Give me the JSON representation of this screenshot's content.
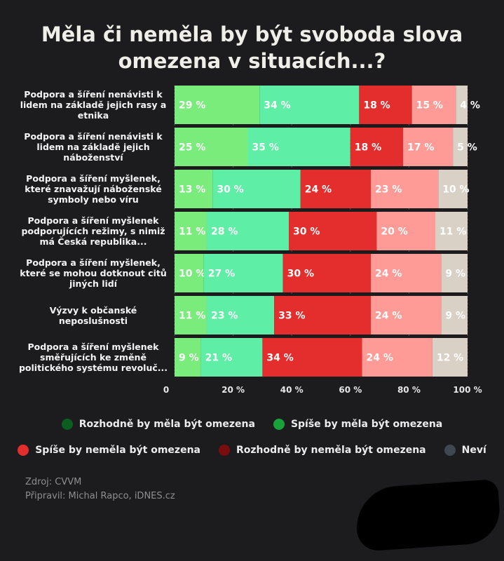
{
  "title_lines": [
    "Měla či neměla by být svoboda slova",
    "omezena v situacích...?"
  ],
  "source": "Zdroj: CVVM",
  "author": "Připravil: Michal Rapco, iDNES.cz",
  "colors": {
    "background": "#1c1c1e",
    "seg": [
      "#79ec7c",
      "#5eeea5",
      "#e42d2d",
      "#ff9b97",
      "#d9d1c6"
    ],
    "legend": [
      "#0b5e1f",
      "#19a13a",
      "#e42d2d",
      "#7a0d0d",
      "#3f4750"
    ],
    "label_text": "#ffffff",
    "grid": "#555555"
  },
  "legend": [
    "Rozhodně by měla být omezena",
    "Spíše by měla být omezena",
    "Spíše by neměla být omezena",
    "Rozhodně by neměla být omezena",
    "Neví"
  ],
  "chart_data": {
    "type": "bar",
    "orientation": "horizontal",
    "stacked": true,
    "xlim": [
      0,
      100
    ],
    "x_ticks": [
      "0",
      "20 %",
      "40 %",
      "60 %",
      "80 %",
      "100 %"
    ],
    "x_tick_values": [
      0,
      20,
      40,
      60,
      80,
      100
    ],
    "categories": [
      [
        "Podpora a šíření nenávisti k",
        "lidem na základě jejich rasy a",
        "etnika"
      ],
      [
        "Podpora a šíření nenávisti k",
        "lidem na základě jejich",
        "náboženství"
      ],
      [
        "Podpora a šíření myšlenek,",
        "které znavažují náboženské",
        "symboly nebo víru"
      ],
      [
        "Podpora a šíření myšlenek",
        "podporujících režimy, s nimiž",
        "má Česká republika..."
      ],
      [
        "Podpora a šíření myšlenek,",
        "které se mohou dotknout citů",
        "jiných lidí"
      ],
      [
        "Výzvy k občanské",
        "neposlušnosti"
      ],
      [
        "Podpora a šíření myšlenek",
        "směřujících ke změně",
        "politického systému revoluč..."
      ]
    ],
    "series": [
      {
        "name": "Rozhodně by měla být omezena",
        "values": [
          29,
          25,
          13,
          11,
          10,
          11,
          9
        ]
      },
      {
        "name": "Spíše by měla být omezena",
        "values": [
          34,
          35,
          30,
          28,
          27,
          23,
          21
        ]
      },
      {
        "name": "Spíše by neměla být omezena",
        "values": [
          18,
          18,
          24,
          30,
          30,
          33,
          34
        ]
      },
      {
        "name": "Rozhodně by neměla být omezena",
        "values": [
          15,
          17,
          23,
          20,
          24,
          24,
          24
        ]
      },
      {
        "name": "Neví",
        "values": [
          4,
          5,
          10,
          11,
          9,
          9,
          12
        ]
      }
    ],
    "value_labels": [
      [
        "29 %",
        "34 %",
        "18 %",
        "15 %",
        "4 %"
      ],
      [
        "25 %",
        "35 %",
        "18 %",
        "17 %",
        "5 %"
      ],
      [
        "13 %",
        "30 %",
        "24 %",
        "23 %",
        "10 %"
      ],
      [
        "11 %",
        "28 %",
        "30 %",
        "20 %",
        "11 %"
      ],
      [
        "10 %",
        "27 %",
        "30 %",
        "24 %",
        "9 %"
      ],
      [
        "11 %",
        "23 %",
        "33 %",
        "24 %",
        "9 %"
      ],
      [
        "9 %",
        "21 %",
        "34 %",
        "24 %",
        "12 %"
      ]
    ]
  }
}
